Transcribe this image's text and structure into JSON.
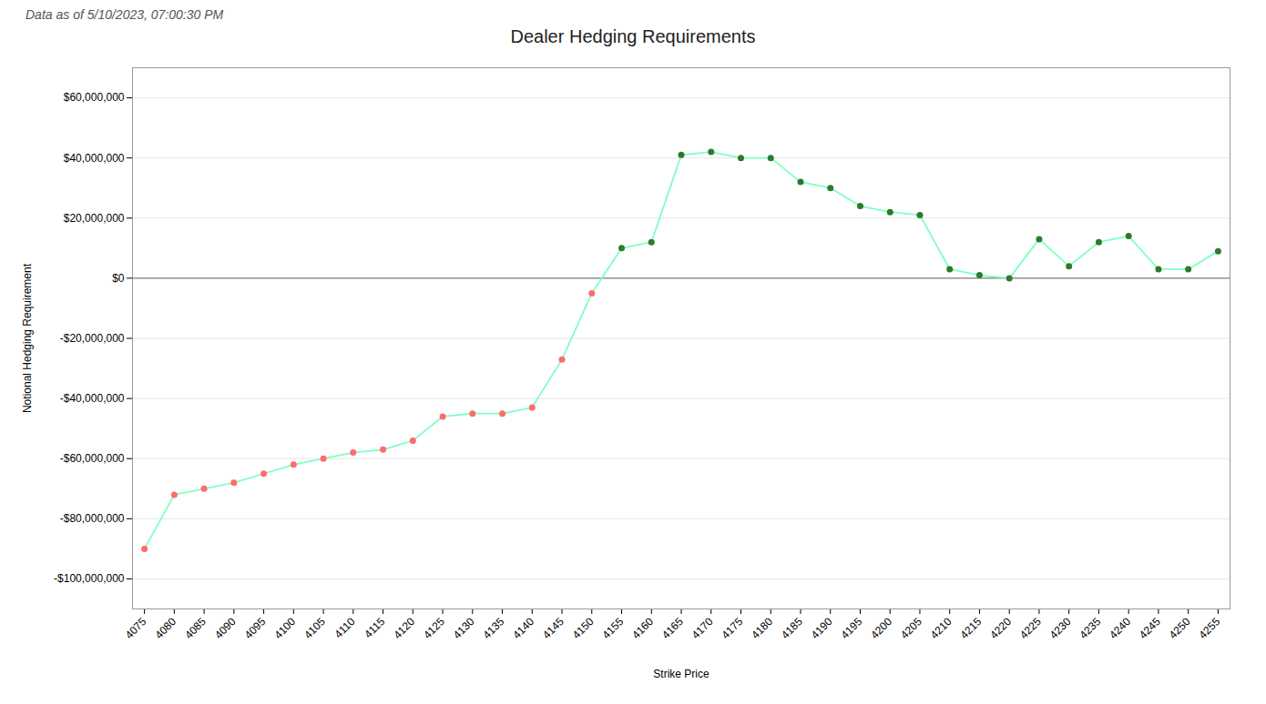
{
  "chart_data": {
    "type": "line",
    "title": "Dealer Hedging Requirements",
    "subtitle": "Data as of 5/10/2023, 07:00:30 PM",
    "xlabel": "Strike Price",
    "ylabel": "Notional Hedging Requirement",
    "x": [
      4075,
      4080,
      4085,
      4090,
      4095,
      4100,
      4105,
      4110,
      4115,
      4120,
      4125,
      4130,
      4135,
      4140,
      4145,
      4150,
      4155,
      4160,
      4165,
      4170,
      4175,
      4180,
      4185,
      4190,
      4195,
      4200,
      4205,
      4210,
      4215,
      4220,
      4225,
      4230,
      4235,
      4240,
      4245,
      4250,
      4255
    ],
    "values": [
      -90000000,
      -72000000,
      -70000000,
      -68000000,
      -65000000,
      -62000000,
      -60000000,
      -58000000,
      -57000000,
      -54000000,
      -46000000,
      -45000000,
      -45000000,
      -43000000,
      -27000000,
      -5000000,
      10000000,
      12000000,
      41000000,
      42000000,
      40000000,
      40000000,
      32000000,
      30000000,
      24000000,
      22000000,
      21000000,
      3000000,
      1000000,
      0,
      13000000,
      4000000,
      12000000,
      14000000,
      3000000,
      3000000,
      9000000
    ],
    "color": "#7fffc4",
    "marker": "circle",
    "colors": [
      "#ff6b6b",
      "#ff6b6b",
      "#ff6b6b",
      "#ff6b6b",
      "#ff6b6b",
      "#ff6b6b",
      "#ff6b6b",
      "#ff6b6b",
      "#ff6b6b",
      "#ff6b6b",
      "#ff6b6b",
      "#ff6b6b",
      "#ff6b6b",
      "#ff6b6b",
      "#ff6b6b",
      "#ff6b6b",
      "#2d7a2d",
      "#2d7a2d",
      "#2d7a2d",
      "#2d7a2d",
      "#2d7a2d",
      "#2d7a2d",
      "#2d7a2d",
      "#2d7a2d",
      "#2d7a2d",
      "#2d7a2d",
      "#2d7a2d",
      "#2d7a2d",
      "#2d7a2d",
      "#2d7a2d",
      "#2d7a2d",
      "#2d7a2d",
      "#2d7a2d",
      "#2d7a2d",
      "#2d7a2d",
      "#2d7a2d",
      "#2d7a2d"
    ],
    "xlim": [
      4073,
      4257
    ],
    "xticks": [
      4075,
      4080,
      4085,
      4090,
      4095,
      4100,
      4105,
      4110,
      4115,
      4120,
      4125,
      4130,
      4135,
      4140,
      4145,
      4150,
      4155,
      4160,
      4165,
      4170,
      4175,
      4180,
      4185,
      4190,
      4195,
      4200,
      4205,
      4210,
      4215,
      4220,
      4225,
      4230,
      4235,
      4240,
      4245,
      4250,
      4255
    ],
    "ylim": [
      -110000000,
      70000000
    ],
    "yticks": [
      {
        "value": -100000000,
        "label": "-$100,000,000"
      },
      {
        "value": -80000000,
        "label": "-$80,000,000"
      },
      {
        "value": -60000000,
        "label": "-$60,000,000"
      },
      {
        "value": -40000000,
        "label": "-$40,000,000"
      },
      {
        "value": -20000000,
        "label": "-$20,000,000"
      },
      {
        "value": 0,
        "label": "$0"
      },
      {
        "value": 20000000,
        "label": "$20,000,000"
      },
      {
        "value": 40000000,
        "label": "$40,000,000"
      },
      {
        "value": 60000000,
        "label": "$60,000,000"
      }
    ],
    "grid": true
  }
}
